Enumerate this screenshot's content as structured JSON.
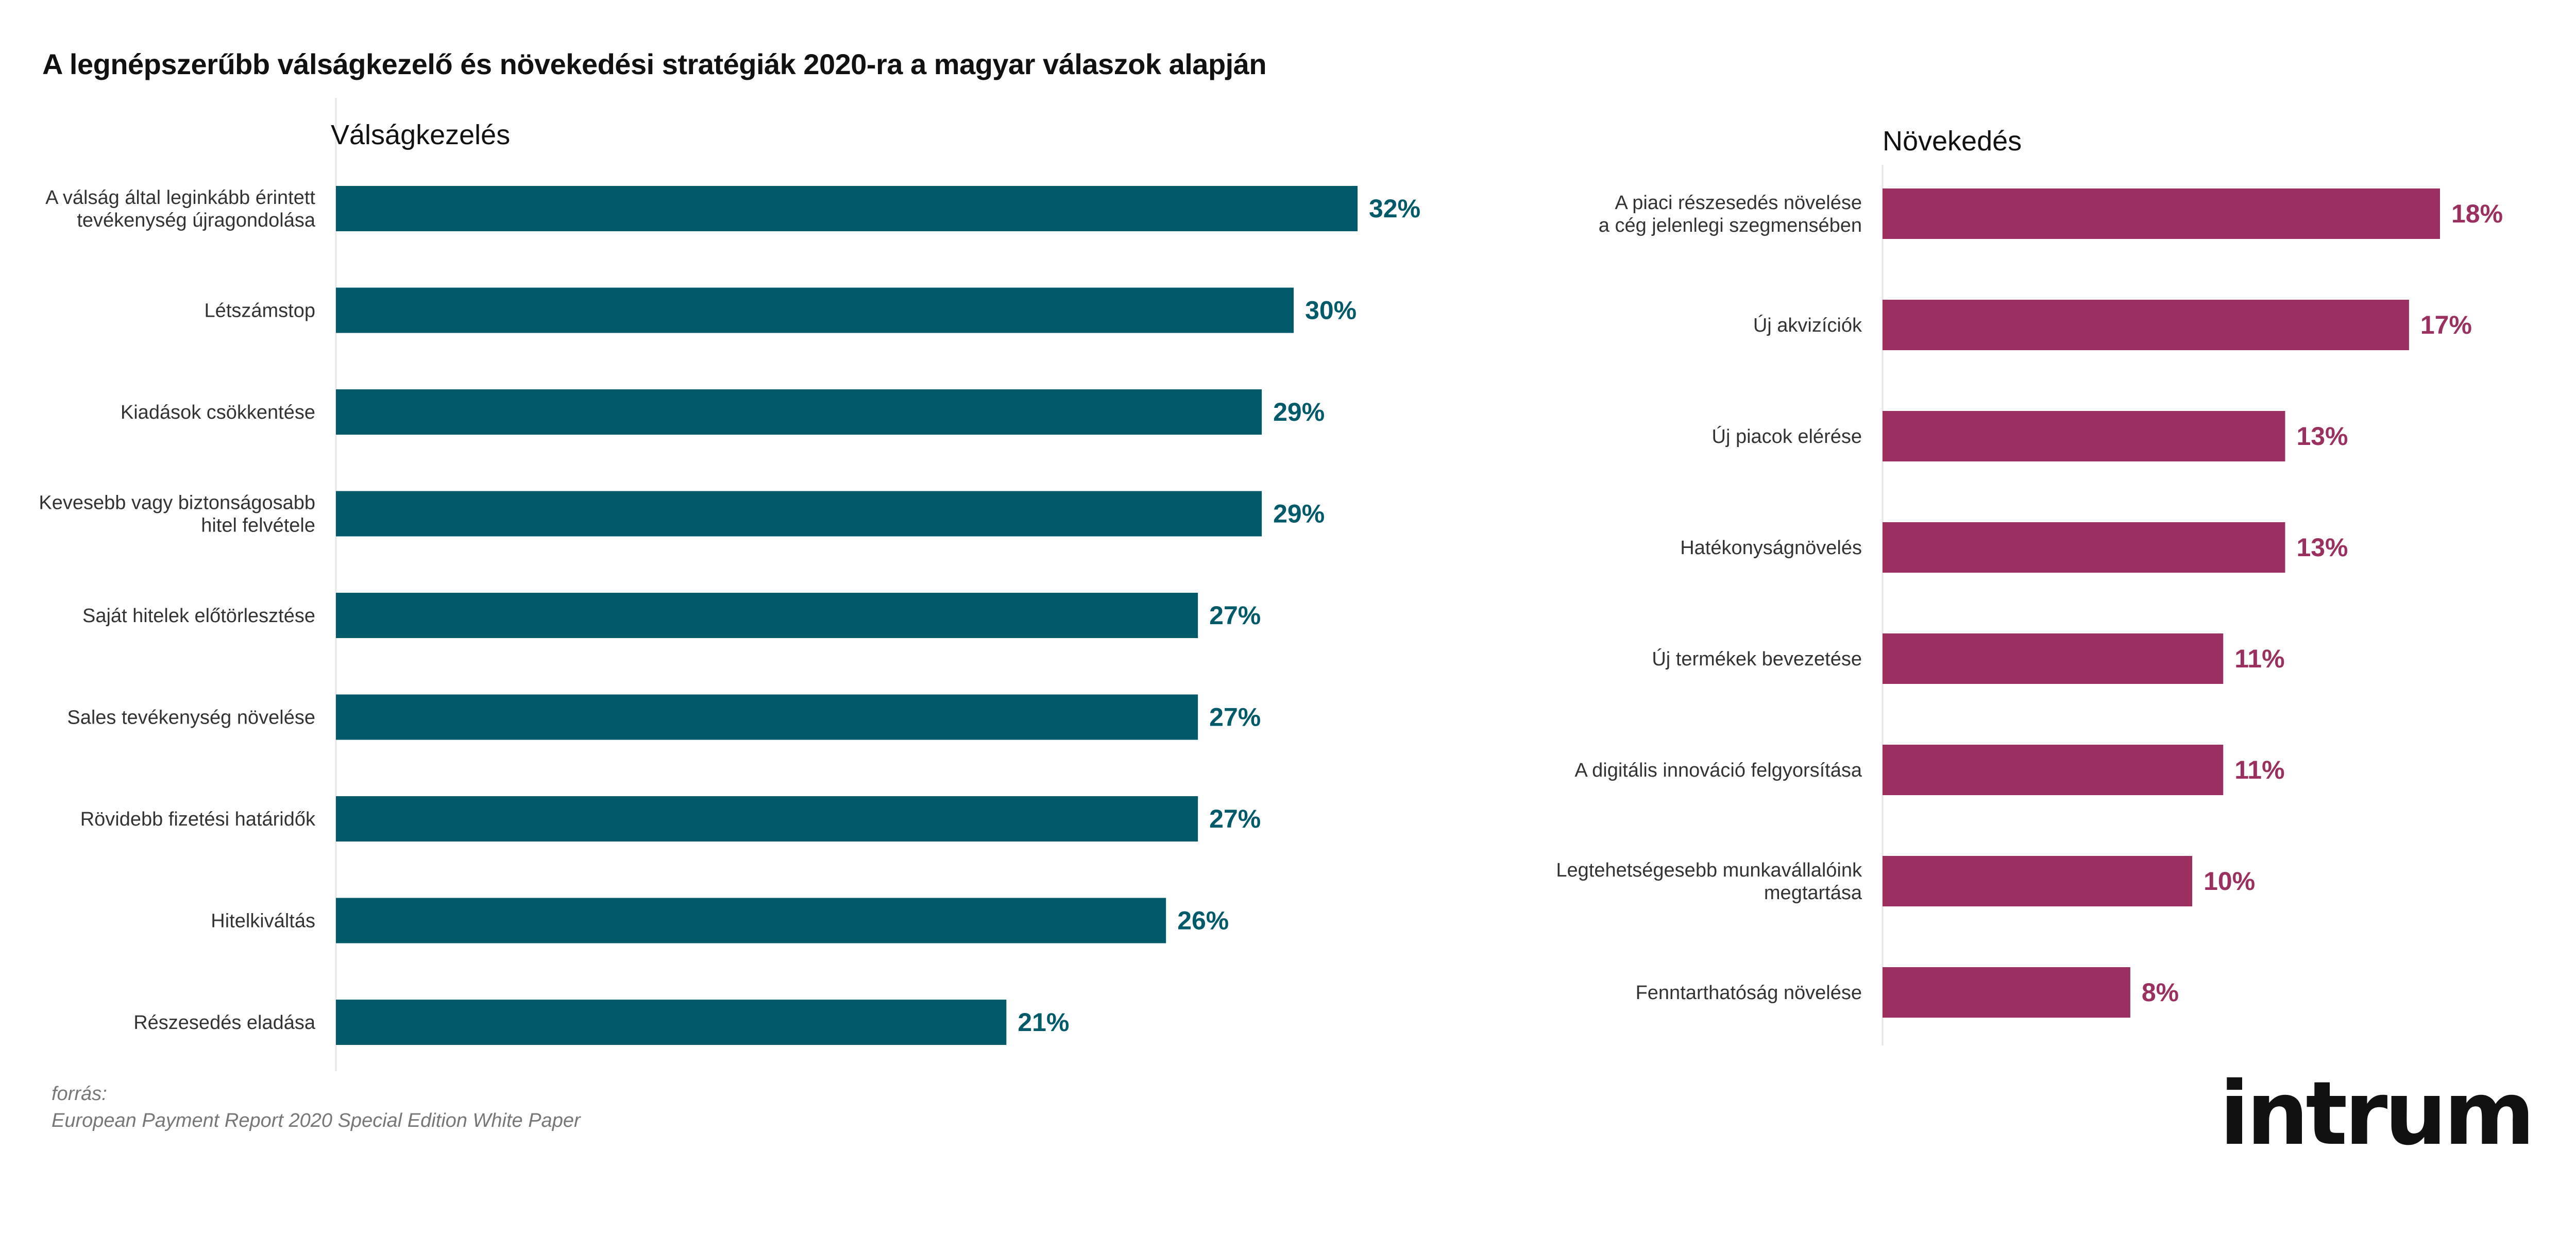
{
  "title": "A legnépszerűbb válságkezelő és növekedési stratégiák 2020-ra a magyar válaszok alapján",
  "source": {
    "label": "forrás:",
    "text": "European Payment Report 2020 Special Edition White Paper"
  },
  "logo_text": "intrum",
  "chart_data": [
    {
      "type": "bar",
      "orientation": "horizontal",
      "title": "Válságkezelés",
      "color": "#005a6a",
      "xlim": [
        0,
        32
      ],
      "grid": false,
      "categories": [
        [
          "A válság által leginkább érintett",
          "tevékenység újragondolása"
        ],
        [
          "Létszámstop"
        ],
        [
          "Kiadások csökkentése"
        ],
        [
          "Kevesebb vagy biztonságosabb",
          "hitel felvétele"
        ],
        [
          "Saját hitelek előtörlesztése"
        ],
        [
          "Sales tevékenység növelése"
        ],
        [
          "Rövidebb fizetési határidők"
        ],
        [
          "Hitelkiváltás"
        ],
        [
          "Részesedés eladása"
        ]
      ],
      "values": [
        32,
        30,
        29,
        29,
        27,
        27,
        27,
        26,
        21
      ],
      "value_labels": [
        "32%",
        "30%",
        "29%",
        "29%",
        "27%",
        "27%",
        "27%",
        "26%",
        "21%"
      ]
    },
    {
      "type": "bar",
      "orientation": "horizontal",
      "title": "Növekedés",
      "color": "#9b2f5f",
      "xlim": [
        0,
        18
      ],
      "grid": false,
      "categories": [
        [
          "A piaci részesedés növelése",
          "a cég jelenlegi szegmensében"
        ],
        [
          "Új akvizíciók"
        ],
        [
          "Új piacok elérése"
        ],
        [
          "Hatékonyságnövelés"
        ],
        [
          "Új termékek bevezetése"
        ],
        [
          "A digitális innováció felgyorsítása"
        ],
        [
          "Legtehetségesebb munkavállalóink",
          "megtartása"
        ],
        [
          "Fenntarthatóság növelése"
        ]
      ],
      "values": [
        18,
        17,
        13,
        13,
        11,
        11,
        10,
        8
      ],
      "value_labels": [
        "18%",
        "17%",
        "13%",
        "13%",
        "11%",
        "11%",
        "10%",
        "8%"
      ]
    }
  ]
}
